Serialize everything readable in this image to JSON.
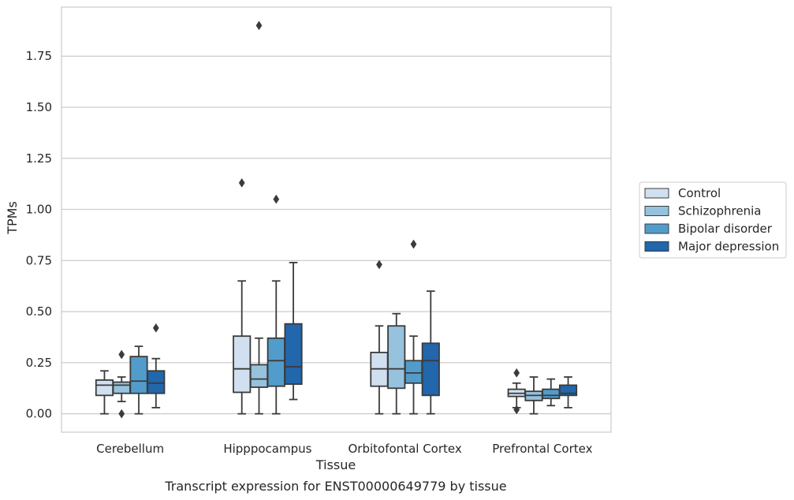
{
  "chart_data": {
    "type": "box",
    "title": "",
    "caption": "Transcript expression for ENST00000649779 by tissue",
    "xlabel": "Tissue",
    "ylabel": "TPMs",
    "ylim": [
      -0.09,
      1.99
    ],
    "yticks": [
      "0.00",
      "0.25",
      "0.50",
      "0.75",
      "1.00",
      "1.25",
      "1.50",
      "1.75"
    ],
    "grid": "horizontal",
    "legend_position": "right",
    "categories": [
      "Cerebellum",
      "Hipppocampus",
      "Orbitofontal Cortex",
      "Prefrontal Cortex"
    ],
    "series": [
      {
        "name": "Control",
        "color": "#d0e0f1",
        "boxes": [
          {
            "whislo": 0.0,
            "q1": 0.09,
            "med": 0.14,
            "q3": 0.165,
            "whishi": 0.21,
            "fliers": []
          },
          {
            "whislo": 0.0,
            "q1": 0.105,
            "med": 0.22,
            "q3": 0.38,
            "whishi": 0.65,
            "fliers": [
              1.13
            ]
          },
          {
            "whislo": 0.0,
            "q1": 0.135,
            "med": 0.22,
            "q3": 0.3,
            "whishi": 0.43,
            "fliers": [
              0.73
            ]
          },
          {
            "whislo": 0.03,
            "q1": 0.085,
            "med": 0.1,
            "q3": 0.12,
            "whishi": 0.15,
            "fliers": [
              0.2,
              0.02
            ]
          }
        ]
      },
      {
        "name": "Schizophrenia",
        "color": "#96c2dd",
        "boxes": [
          {
            "whislo": 0.06,
            "q1": 0.1,
            "med": 0.14,
            "q3": 0.155,
            "whishi": 0.18,
            "fliers": [
              0.29,
              0.0
            ]
          },
          {
            "whislo": 0.0,
            "q1": 0.13,
            "med": 0.17,
            "q3": 0.24,
            "whishi": 0.37,
            "fliers": [
              1.9
            ]
          },
          {
            "whislo": 0.0,
            "q1": 0.125,
            "med": 0.22,
            "q3": 0.43,
            "whishi": 0.49,
            "fliers": []
          },
          {
            "whislo": 0.0,
            "q1": 0.065,
            "med": 0.09,
            "q3": 0.11,
            "whishi": 0.18,
            "fliers": []
          }
        ]
      },
      {
        "name": "Bipolar disorder",
        "color": "#529ccc",
        "boxes": [
          {
            "whislo": 0.0,
            "q1": 0.1,
            "med": 0.16,
            "q3": 0.28,
            "whishi": 0.33,
            "fliers": []
          },
          {
            "whislo": 0.0,
            "q1": 0.135,
            "med": 0.26,
            "q3": 0.37,
            "whishi": 0.65,
            "fliers": [
              1.05
            ]
          },
          {
            "whislo": 0.0,
            "q1": 0.15,
            "med": 0.2,
            "q3": 0.26,
            "whishi": 0.38,
            "fliers": [
              0.83
            ]
          },
          {
            "whislo": 0.04,
            "q1": 0.075,
            "med": 0.09,
            "q3": 0.12,
            "whishi": 0.17,
            "fliers": []
          }
        ]
      },
      {
        "name": "Major depression",
        "color": "#2266ac",
        "boxes": [
          {
            "whislo": 0.03,
            "q1": 0.1,
            "med": 0.15,
            "q3": 0.21,
            "whishi": 0.27,
            "fliers": [
              0.42
            ]
          },
          {
            "whislo": 0.07,
            "q1": 0.145,
            "med": 0.23,
            "q3": 0.44,
            "whishi": 0.74,
            "fliers": []
          },
          {
            "whislo": 0.0,
            "q1": 0.09,
            "med": 0.26,
            "q3": 0.345,
            "whishi": 0.6,
            "fliers": []
          },
          {
            "whislo": 0.03,
            "q1": 0.09,
            "med": 0.1,
            "q3": 0.14,
            "whishi": 0.18,
            "fliers": []
          }
        ]
      }
    ]
  }
}
